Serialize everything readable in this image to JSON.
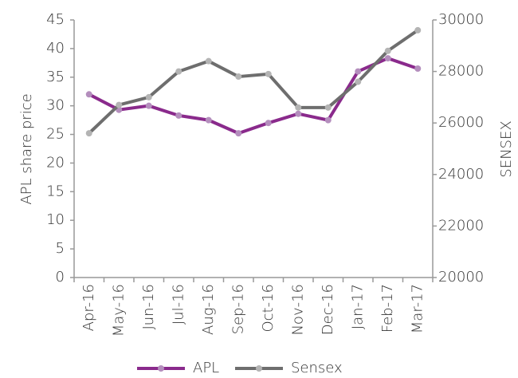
{
  "chart_data": {
    "type": "line",
    "categories": [
      "Apr-16",
      "May-16",
      "Jun-16",
      "Jul-16",
      "Aug-16",
      "Sep-16",
      "Oct-16",
      "Nov-16",
      "Dec-16",
      "Jan-17",
      "Feb-17",
      "Mar-17"
    ],
    "series": [
      {
        "name": "APL",
        "color": "#8a2a8c",
        "marker_color": "#b48ebd",
        "values": [
          32,
          29.3,
          30,
          28.3,
          27.5,
          25.2,
          27,
          28.6,
          27.5,
          36,
          38.3,
          36.5
        ]
      },
      {
        "name": "Sensex",
        "color": "#6e6e6e",
        "marker_color": "#b4b4b4",
        "axis": "y2",
        "values": [
          25600,
          26700,
          27000,
          28000,
          28400,
          27800,
          27900,
          26600,
          26600,
          27600,
          28800,
          29600
        ]
      }
    ],
    "y_label": "APL share price",
    "y2_label": "SENSEX",
    "ylim": [
      0,
      45
    ],
    "yticks": [
      0,
      5,
      10,
      15,
      20,
      25,
      30,
      35,
      40,
      45
    ],
    "y2lim": [
      20000,
      30000
    ],
    "y2ticks": [
      20000,
      22000,
      24000,
      26000,
      28000,
      30000
    ],
    "grid": false,
    "legend": "bottom"
  }
}
